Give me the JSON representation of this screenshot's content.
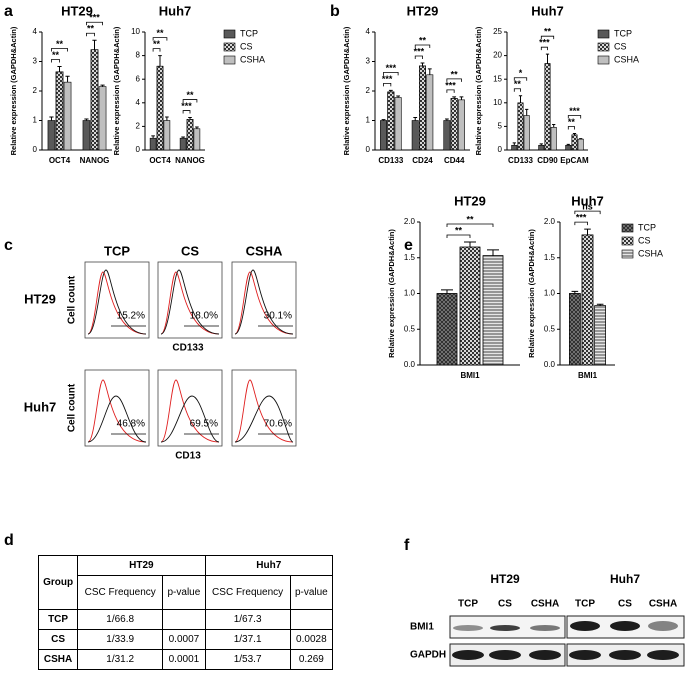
{
  "panel_labels": [
    "a",
    "b",
    "c",
    "d",
    "e",
    "f"
  ],
  "chart_data": [
    {
      "type": "bar",
      "title": "HT29",
      "ylabel": "Relative expression (GAPDH&Actin)",
      "categories": [
        "OCT4",
        "NANOG"
      ],
      "series": [
        {
          "name": "TCP",
          "color": "#595959",
          "pattern": "solid",
          "values": [
            1,
            1
          ],
          "errors": [
            0.12,
            0.05
          ]
        },
        {
          "name": "CS",
          "color": "#d9d9d9",
          "pattern": "checker",
          "values": [
            2.65,
            3.4
          ],
          "errors": [
            0.18,
            0.32
          ]
        },
        {
          "name": "CSHA",
          "color": "#bfbfbf",
          "pattern": "solid",
          "values": [
            2.3,
            2.15
          ],
          "errors": [
            0.2,
            0.05
          ]
        }
      ],
      "significance": [
        [
          "**",
          "**"
        ],
        [
          "**",
          "***"
        ]
      ],
      "ylim": [
        0,
        4
      ],
      "yticks": [
        0,
        1,
        2,
        3,
        4
      ],
      "legend": false
    },
    {
      "type": "bar",
      "title": "Huh7",
      "ylabel": "Relative expression (GAPDH&Actin)",
      "categories": [
        "OCT4",
        "NANOG"
      ],
      "series": [
        {
          "name": "TCP",
          "color": "#595959",
          "pattern": "solid",
          "values": [
            1,
            1
          ],
          "errors": [
            0.2,
            0.1
          ]
        },
        {
          "name": "CS",
          "color": "#d9d9d9",
          "pattern": "checker",
          "values": [
            7.1,
            2.6
          ],
          "errors": [
            0.9,
            0.15
          ]
        },
        {
          "name": "CSHA",
          "color": "#bfbfbf",
          "pattern": "solid",
          "values": [
            2.5,
            1.8
          ],
          "errors": [
            0.3,
            0.15
          ]
        }
      ],
      "significance": [
        [
          "**",
          "**"
        ],
        [
          "***",
          "**"
        ]
      ],
      "ylim": [
        0,
        10
      ],
      "yticks": [
        0,
        2,
        4,
        6,
        8,
        10
      ],
      "legend": true
    },
    {
      "type": "bar",
      "title": "HT29",
      "ylabel": "Relative expression (GAPDH&Actin)",
      "categories": [
        "CD133",
        "CD24",
        "CD44"
      ],
      "series": [
        {
          "name": "TCP",
          "color": "#595959",
          "pattern": "solid",
          "values": [
            1,
            1,
            1
          ],
          "errors": [
            0.03,
            0.1,
            0.05
          ]
        },
        {
          "name": "CS",
          "color": "#d9d9d9",
          "pattern": "checker",
          "values": [
            1.97,
            2.85,
            1.75
          ],
          "errors": [
            0.05,
            0.1,
            0.05
          ]
        },
        {
          "name": "CSHA",
          "color": "#bfbfbf",
          "pattern": "solid",
          "values": [
            1.78,
            2.55,
            1.7
          ],
          "errors": [
            0.05,
            0.2,
            0.1
          ]
        }
      ],
      "significance": [
        [
          "***",
          "***"
        ],
        [
          "***",
          "**"
        ],
        [
          "***",
          "**"
        ]
      ],
      "ylim": [
        0,
        4
      ],
      "yticks": [
        0,
        1,
        2,
        3,
        4
      ],
      "legend": false
    },
    {
      "type": "bar",
      "title": "Huh7",
      "ylabel": "Relative expression (GAPDH&Actin)",
      "categories": [
        "CD133",
        "CD90",
        "EpCAM"
      ],
      "series": [
        {
          "name": "TCP",
          "color": "#595959",
          "pattern": "solid",
          "values": [
            1,
            1,
            1
          ],
          "errors": [
            0.5,
            0.3,
            0.2
          ]
        },
        {
          "name": "CS",
          "color": "#d9d9d9",
          "pattern": "checker",
          "values": [
            10,
            18.3,
            3.2
          ],
          "errors": [
            1.5,
            2,
            0.3
          ]
        },
        {
          "name": "CSHA",
          "color": "#bfbfbf",
          "pattern": "solid",
          "values": [
            7.3,
            4.8,
            2.3
          ],
          "errors": [
            1.3,
            0.6,
            0.1
          ]
        }
      ],
      "significance": [
        [
          "**",
          "*"
        ],
        [
          "***",
          "**"
        ],
        [
          "**",
          "***"
        ]
      ],
      "ylim": [
        0,
        25
      ],
      "yticks": [
        0,
        5,
        10,
        15,
        20,
        25
      ],
      "legend": true
    },
    {
      "type": "bar",
      "title": "HT29",
      "ylabel": "Relative expression (GAPDH&Actin)",
      "categories": [
        "BMI1"
      ],
      "series": [
        {
          "name": "TCP",
          "color": "#7f7f7f",
          "pattern": "crosshatch",
          "values": [
            1
          ],
          "errors": [
            0.05
          ]
        },
        {
          "name": "CS",
          "color": "#d9d9d9",
          "pattern": "checker",
          "values": [
            1.65
          ],
          "errors": [
            0.07
          ]
        },
        {
          "name": "CSHA",
          "color": "#e6e6e6",
          "pattern": "stripes",
          "values": [
            1.53
          ],
          "errors": [
            0.08
          ]
        }
      ],
      "significance": [
        [
          "**",
          "**"
        ]
      ],
      "ylim": [
        0,
        2
      ],
      "yticks": [
        {
          "value": 0,
          "label": "0.0"
        },
        0.5,
        {
          "value": 1,
          "label": "1.0"
        },
        1.5,
        {
          "value": 2,
          "label": "2.0"
        }
      ],
      "legend": false
    },
    {
      "type": "bar",
      "title": "Huh7",
      "ylabel": "Relative expression (GAPDH&Actin)",
      "categories": [
        "BMI1"
      ],
      "series": [
        {
          "name": "TCP",
          "color": "#7f7f7f",
          "pattern": "crosshatch",
          "values": [
            1
          ],
          "errors": [
            0.03
          ]
        },
        {
          "name": "CS",
          "color": "#d9d9d9",
          "pattern": "checker",
          "values": [
            1.82
          ],
          "errors": [
            0.08
          ]
        },
        {
          "name": "CSHA",
          "color": "#e6e6e6",
          "pattern": "stripes",
          "values": [
            0.83
          ],
          "errors": [
            0.02
          ]
        }
      ],
      "significance": [
        [
          "***",
          "ns"
        ]
      ],
      "ylim": [
        0,
        2
      ],
      "yticks": [
        {
          "value": 0,
          "label": "0.0"
        },
        0.5,
        {
          "value": 1,
          "label": "1.0"
        },
        1.5,
        {
          "value": 2,
          "label": "2.0"
        }
      ],
      "legend": true
    }
  ],
  "flow": {
    "columns": [
      "TCP",
      "CS",
      "CSHA"
    ],
    "ylabel": "Cell count",
    "rows": [
      {
        "label": "HT29",
        "marker": "CD133",
        "percents": [
          "15.2%",
          "18.0%",
          "30.1%"
        ]
      },
      {
        "label": "Huh7",
        "marker": "CD13",
        "percents": [
          "46.8%",
          "69.5%",
          "70.6%"
        ]
      }
    ]
  },
  "table": {
    "header": [
      "Group",
      "HT29",
      "Huh7"
    ],
    "subheader": [
      "CSC Frequency",
      "p-value"
    ],
    "rows": [
      {
        "group": "TCP",
        "ht29": {
          "freq": "1/66.8"
        },
        "huh7": {
          "freq": "1/67.3"
        }
      },
      {
        "group": "CS",
        "ht29": {
          "freq": "1/33.9",
          "p": "0.0007"
        },
        "huh7": {
          "freq": "1/37.1",
          "p": "0.0028"
        }
      },
      {
        "group": "CSHA",
        "ht29": {
          "freq": "1/31.2",
          "p": "0.0001"
        },
        "huh7": {
          "freq": "1/53.7",
          "p": "0.269"
        }
      }
    ]
  },
  "blot": {
    "groups": [
      "HT29",
      "Huh7"
    ],
    "lanes": [
      "TCP",
      "CS",
      "CSHA",
      "TCP",
      "CS",
      "CSHA"
    ],
    "rows": [
      "BMI1",
      "GAPDH"
    ]
  }
}
